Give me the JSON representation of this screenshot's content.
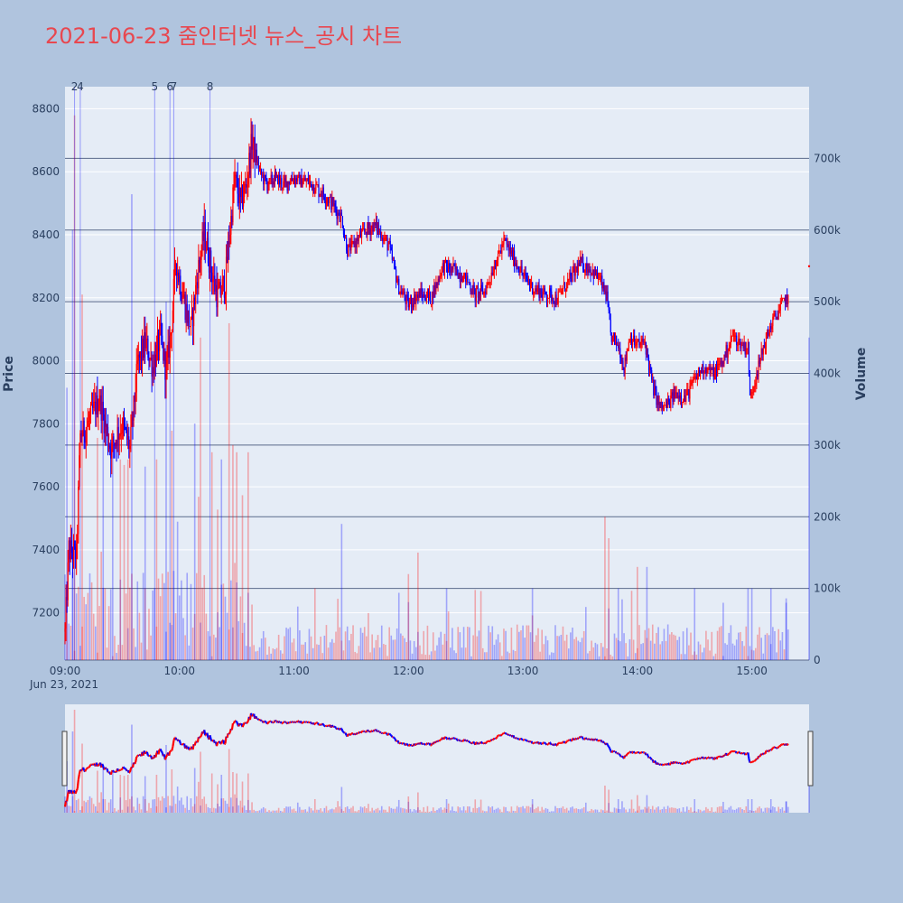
{
  "title": "2021-06-23 줌인터넷 뉴스_공시 차트",
  "colors": {
    "background": "#b0c4de",
    "plot_bg": "#e5ecf6",
    "up": "#ff0000",
    "down": "#0000ff",
    "title": "#e8474f",
    "volume_grid": "#5a6a8a"
  },
  "chart_data": {
    "type": "candlestick",
    "x_axis": {
      "ticks": [
        "09:00",
        "10:00",
        "11:00",
        "12:00",
        "13:00",
        "14:00",
        "15:00"
      ],
      "date_label": "Jun 23, 2021",
      "range": [
        "09:00",
        "15:30"
      ]
    },
    "y_axis_price": {
      "title": "Price",
      "ticks": [
        7200,
        7400,
        7600,
        7800,
        8000,
        8200,
        8400,
        8600,
        8800
      ],
      "range": [
        7050,
        8870
      ]
    },
    "y_axis_volume": {
      "title": "Volume",
      "ticks": [
        0,
        100000,
        200000,
        300000,
        400000,
        500000,
        600000,
        700000
      ],
      "tick_labels": [
        "0",
        "100k",
        "200k",
        "300k",
        "400k",
        "500k",
        "600k",
        "700k"
      ],
      "range": [
        0,
        800000
      ]
    },
    "news_markers": [
      {
        "label": "2",
        "time": "09:05"
      },
      {
        "label": "4",
        "time": "09:08"
      },
      {
        "label": "5",
        "time": "09:47"
      },
      {
        "label": "6",
        "time": "09:55"
      },
      {
        "label": "7",
        "time": "09:57"
      },
      {
        "label": "8",
        "time": "10:16"
      }
    ],
    "price_keypoints": [
      [
        "09:00",
        7140
      ],
      [
        "09:02",
        7400
      ],
      [
        "09:06",
        7380
      ],
      [
        "09:08",
        7760
      ],
      [
        "09:12",
        7800
      ],
      [
        "09:18",
        7880
      ],
      [
        "09:24",
        7720
      ],
      [
        "09:30",
        7800
      ],
      [
        "09:34",
        7720
      ],
      [
        "09:38",
        7980
      ],
      [
        "09:42",
        8060
      ],
      [
        "09:46",
        7980
      ],
      [
        "09:50",
        8080
      ],
      [
        "09:53",
        7960
      ],
      [
        "09:56",
        8120
      ],
      [
        "09:58",
        8320
      ],
      [
        "10:02",
        8200
      ],
      [
        "10:06",
        8100
      ],
      [
        "10:10",
        8300
      ],
      [
        "10:13",
        8400
      ],
      [
        "10:17",
        8280
      ],
      [
        "10:20",
        8200
      ],
      [
        "10:24",
        8250
      ],
      [
        "10:27",
        8450
      ],
      [
        "10:29",
        8580
      ],
      [
        "10:32",
        8500
      ],
      [
        "10:35",
        8560
      ],
      [
        "10:38",
        8700
      ],
      [
        "10:42",
        8600
      ],
      [
        "10:46",
        8560
      ],
      [
        "10:50",
        8580
      ],
      [
        "10:55",
        8560
      ],
      [
        "11:00",
        8580
      ],
      [
        "11:10",
        8560
      ],
      [
        "11:20",
        8500
      ],
      [
        "11:25",
        8450
      ],
      [
        "11:28",
        8350
      ],
      [
        "11:33",
        8380
      ],
      [
        "11:38",
        8420
      ],
      [
        "11:43",
        8430
      ],
      [
        "11:50",
        8360
      ],
      [
        "11:55",
        8230
      ],
      [
        "12:00",
        8180
      ],
      [
        "12:06",
        8210
      ],
      [
        "12:12",
        8200
      ],
      [
        "12:18",
        8300
      ],
      [
        "12:24",
        8290
      ],
      [
        "12:30",
        8260
      ],
      [
        "12:35",
        8210
      ],
      [
        "12:40",
        8220
      ],
      [
        "12:45",
        8300
      ],
      [
        "12:50",
        8380
      ],
      [
        "12:55",
        8330
      ],
      [
        "13:00",
        8270
      ],
      [
        "13:06",
        8230
      ],
      [
        "13:12",
        8210
      ],
      [
        "13:18",
        8200
      ],
      [
        "13:25",
        8260
      ],
      [
        "13:30",
        8310
      ],
      [
        "13:36",
        8290
      ],
      [
        "13:41",
        8250
      ],
      [
        "13:44",
        8200
      ],
      [
        "13:46",
        8080
      ],
      [
        "13:50",
        8050
      ],
      [
        "13:53",
        7980
      ],
      [
        "13:56",
        8080
      ],
      [
        "14:00",
        8050
      ],
      [
        "14:04",
        8060
      ],
      [
        "14:08",
        7920
      ],
      [
        "14:12",
        7850
      ],
      [
        "14:16",
        7860
      ],
      [
        "14:20",
        7900
      ],
      [
        "14:25",
        7880
      ],
      [
        "14:30",
        7940
      ],
      [
        "14:35",
        7980
      ],
      [
        "14:40",
        7960
      ],
      [
        "14:45",
        8000
      ],
      [
        "14:50",
        8080
      ],
      [
        "14:55",
        8050
      ],
      [
        "14:58",
        8040
      ],
      [
        "14:59",
        7880
      ],
      [
        "15:02",
        7950
      ],
      [
        "15:06",
        8040
      ],
      [
        "15:10",
        8110
      ],
      [
        "15:14",
        8160
      ],
      [
        "15:18",
        8200
      ],
      [
        "15:19",
        8200
      ]
    ],
    "volume_spikes": [
      [
        "09:01",
        380000
      ],
      [
        "09:04",
        600000
      ],
      [
        "09:05",
        760000
      ],
      [
        "09:09",
        510000
      ],
      [
        "09:17",
        310000
      ],
      [
        "09:20",
        350000
      ],
      [
        "09:25",
        300000
      ],
      [
        "09:29",
        280000
      ],
      [
        "09:33",
        280000
      ],
      [
        "09:35",
        650000
      ],
      [
        "09:42",
        270000
      ],
      [
        "09:48",
        280000
      ],
      [
        "09:53",
        500000
      ],
      [
        "09:56",
        320000
      ],
      [
        "10:08",
        330000
      ],
      [
        "10:11",
        450000
      ],
      [
        "10:17",
        290000
      ],
      [
        "10:20",
        210000
      ],
      [
        "10:22",
        280000
      ],
      [
        "10:26",
        470000
      ],
      [
        "10:28",
        300000
      ],
      [
        "10:30",
        290000
      ],
      [
        "10:33",
        230000
      ],
      [
        "10:36",
        290000
      ],
      [
        "11:25",
        190000
      ],
      [
        "12:00",
        120000
      ],
      [
        "12:05",
        150000
      ],
      [
        "12:20",
        100000
      ],
      [
        "13:05",
        100000
      ],
      [
        "13:43",
        200000
      ],
      [
        "13:45",
        170000
      ],
      [
        "13:50",
        100000
      ],
      [
        "14:00",
        130000
      ],
      [
        "14:05",
        130000
      ],
      [
        "14:30",
        100000
      ],
      [
        "14:45",
        80000
      ],
      [
        "14:58",
        100000
      ],
      [
        "15:00",
        100000
      ],
      [
        "15:10",
        100000
      ],
      [
        "15:18",
        80000
      ],
      [
        "15:30",
        450000
      ]
    ],
    "grid": true
  }
}
